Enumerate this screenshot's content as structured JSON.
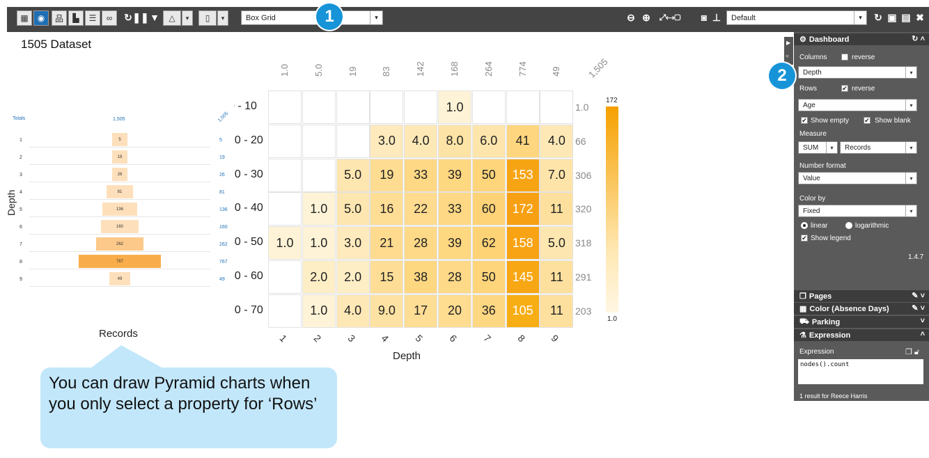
{
  "toolbar": {
    "view_select": "Box Grid",
    "layout_select": "Default",
    "badge1": "1",
    "badge2": "2",
    "icons": [
      "table-icon",
      "dashboard-icon",
      "hierarchy-icon",
      "bar-chart-icon",
      "list-icon",
      "link-icon",
      "refresh-icon",
      "pause-icon",
      "filter-icon",
      "triangle-icon",
      "bookmark-icon",
      "zoom-out-icon",
      "zoom-in-icon",
      "expand-icon",
      "camera-icon",
      "pin-icon",
      "reload-icon",
      "save-as-icon",
      "save-icon",
      "close-icon"
    ]
  },
  "dataset_title": "1505 Dataset",
  "pyramid": {
    "totals_label": "Totals",
    "grand_total": "1,505",
    "grand_total_right": "1,505",
    "axis_title": "Depth",
    "x_title": "Records",
    "rows": [
      {
        "label": "1",
        "value": 5,
        "text": "5",
        "right": "5"
      },
      {
        "label": "2",
        "value": 19,
        "text": "19",
        "right": "19"
      },
      {
        "label": "3",
        "value": 26,
        "text": "26",
        "right": "26"
      },
      {
        "label": "4",
        "value": 81,
        "text": "81",
        "right": "81"
      },
      {
        "label": "5",
        "value": 136,
        "text": "136",
        "right": "136"
      },
      {
        "label": "6",
        "value": 160,
        "text": "160",
        "right": "160"
      },
      {
        "label": "7",
        "value": 262,
        "text": "262",
        "right": "262"
      },
      {
        "label": "8",
        "value": 767,
        "text": "767",
        "right": "767"
      },
      {
        "label": "9",
        "value": 49,
        "text": "49",
        "right": "49"
      }
    ]
  },
  "grid": {
    "col_totals": [
      "1.0",
      "5.0",
      "19",
      "83",
      "142",
      "168",
      "264",
      "774",
      "49",
      "1,505"
    ],
    "col_labels": [
      "1",
      "2",
      "3",
      "4",
      "5",
      "6",
      "7",
      "8",
      "9"
    ],
    "x_title": "Depth",
    "rows": [
      {
        "label": "0 - 10",
        "total": "1.0",
        "cells": [
          "",
          "",
          "",
          "",
          "",
          "1.0",
          "",
          "",
          ""
        ]
      },
      {
        "label": "10 - 20",
        "total": "66",
        "cells": [
          "",
          "",
          "",
          "3.0",
          "4.0",
          "8.0",
          "6.0",
          "41",
          "4.0"
        ]
      },
      {
        "label": "20 - 30",
        "total": "306",
        "cells": [
          "",
          "",
          "5.0",
          "19",
          "33",
          "39",
          "50",
          "153",
          "7.0"
        ]
      },
      {
        "label": "30 - 40",
        "total": "320",
        "cells": [
          "",
          "1.0",
          "5.0",
          "16",
          "22",
          "33",
          "60",
          "172",
          "11"
        ]
      },
      {
        "label": "40 - 50",
        "total": "318",
        "cells": [
          "1.0",
          "1.0",
          "3.0",
          "21",
          "28",
          "39",
          "62",
          "158",
          "5.0"
        ]
      },
      {
        "label": "50 - 60",
        "total": "291",
        "cells": [
          "",
          "2.0",
          "2.0",
          "15",
          "38",
          "28",
          "50",
          "145",
          "11"
        ]
      },
      {
        "label": "60 - 70",
        "total": "203",
        "cells": [
          "",
          "1.0",
          "4.0",
          "9.0",
          "17",
          "20",
          "36",
          "105",
          "11"
        ]
      }
    ],
    "legend_max": "172",
    "legend_min": "1.0",
    "max_value": 172
  },
  "callout": {
    "text": "You can draw Pyramid charts when you only select a property for ‘Rows’"
  },
  "panel": {
    "dashboard_title": "Dashboard",
    "columns_label": "Columns",
    "columns_reverse": "reverse",
    "columns_value": "Depth",
    "rows_label": "Rows",
    "rows_reverse": "reverse",
    "rows_value": "Age",
    "show_empty": "Show empty",
    "show_blank": "Show blank",
    "measure_label": "Measure",
    "measure_func": "SUM",
    "measure_field": "Records",
    "number_format_label": "Number format",
    "number_format_value": "Value",
    "color_by_label": "Color by",
    "color_by_value": "Fixed",
    "linear": "linear",
    "logarithmic": "logarithmic",
    "show_legend": "Show legend",
    "version": "1.4.7",
    "pages": "Pages",
    "color_section": "Color (Absence Days)",
    "parking": "Parking",
    "expression_section": "Expression",
    "expression_label": "Expression",
    "expression_value": "nodes().count",
    "result_text": "1 result for Reece Harris",
    "accent": "#1794d8"
  }
}
